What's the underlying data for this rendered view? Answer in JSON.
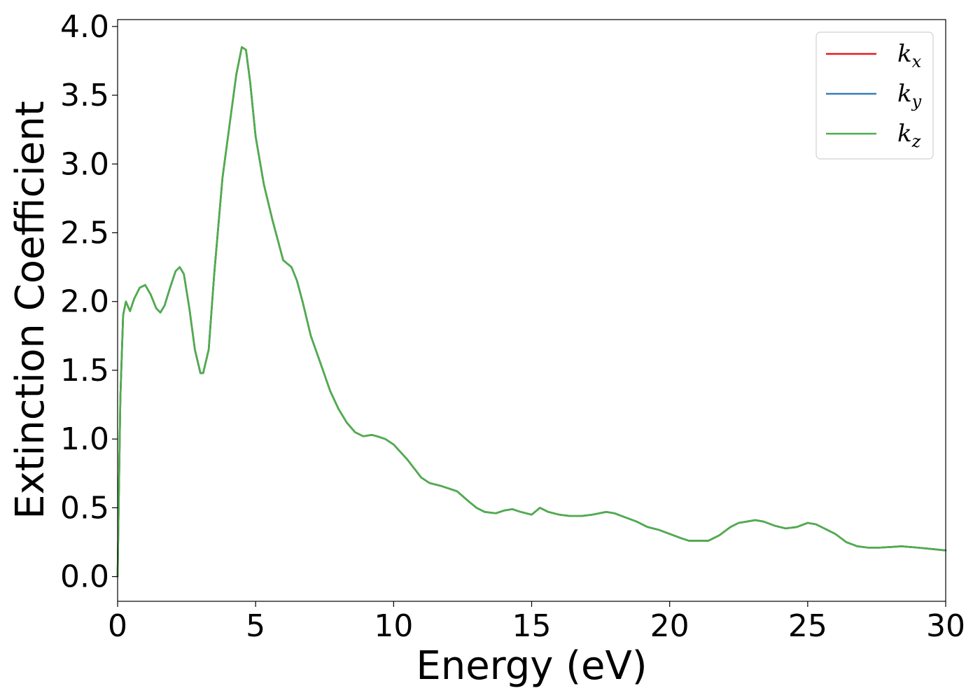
{
  "chart_data": {
    "type": "line",
    "title": "",
    "xlabel": "Energy (eV)",
    "ylabel": "Extinction Coefficient",
    "xlim": [
      0,
      30
    ],
    "ylim": [
      -0.18,
      4.05
    ],
    "xticks": [
      0,
      5,
      10,
      15,
      20,
      25,
      30
    ],
    "xtick_labels": [
      "0",
      "5",
      "10",
      "15",
      "20",
      "25",
      "30"
    ],
    "yticks": [
      0.0,
      0.5,
      1.0,
      1.5,
      2.0,
      2.5,
      3.0,
      3.5,
      4.0
    ],
    "ytick_labels": [
      "0.0",
      "0.5",
      "1.0",
      "1.5",
      "2.0",
      "2.5",
      "3.0",
      "3.5",
      "4.0"
    ],
    "grid": false,
    "legend_position": "top-right",
    "series": [
      {
        "name": "k_x",
        "label_base": "k",
        "label_sub": "x",
        "color": "#e41a1c",
        "x": [
          0,
          0.1,
          0.2,
          0.3,
          0.45,
          0.6,
          0.8,
          1.0,
          1.2,
          1.4,
          1.55,
          1.7,
          1.9,
          2.1,
          2.25,
          2.4,
          2.6,
          2.8,
          3.0,
          3.1,
          3.3,
          3.5,
          3.8,
          4.0,
          4.3,
          4.5,
          4.65,
          4.8,
          5.0,
          5.3,
          5.6,
          6.0,
          6.3,
          6.5,
          6.7,
          7.0,
          7.3,
          7.7,
          8.0,
          8.3,
          8.6,
          8.9,
          9.2,
          9.4,
          9.7,
          10.0,
          10.5,
          11.0,
          11.3,
          11.7,
          12.0,
          12.3,
          12.7,
          13.0,
          13.3,
          13.7,
          14.0,
          14.3,
          14.6,
          15.0,
          15.3,
          15.6,
          16.0,
          16.4,
          16.8,
          17.2,
          17.7,
          18.0,
          18.4,
          18.8,
          19.2,
          19.6,
          20.0,
          20.4,
          20.7,
          21.0,
          21.4,
          21.8,
          22.2,
          22.5,
          22.8,
          23.1,
          23.4,
          23.8,
          24.2,
          24.6,
          25.0,
          25.3,
          25.7,
          26.0,
          26.4,
          26.8,
          27.2,
          27.6,
          28.0,
          28.4,
          29.0,
          29.5,
          30.0
        ],
        "y": [
          0.0,
          1.3,
          1.9,
          2.0,
          1.93,
          2.02,
          2.1,
          2.12,
          2.05,
          1.95,
          1.92,
          1.97,
          2.1,
          2.22,
          2.25,
          2.2,
          1.95,
          1.65,
          1.48,
          1.48,
          1.65,
          2.2,
          2.9,
          3.2,
          3.65,
          3.85,
          3.83,
          3.6,
          3.2,
          2.85,
          2.6,
          2.3,
          2.25,
          2.15,
          2.0,
          1.75,
          1.58,
          1.35,
          1.22,
          1.12,
          1.05,
          1.02,
          1.03,
          1.02,
          1.0,
          0.96,
          0.85,
          0.72,
          0.68,
          0.66,
          0.64,
          0.62,
          0.55,
          0.5,
          0.47,
          0.46,
          0.48,
          0.49,
          0.47,
          0.45,
          0.5,
          0.47,
          0.45,
          0.44,
          0.44,
          0.45,
          0.47,
          0.46,
          0.43,
          0.4,
          0.36,
          0.34,
          0.31,
          0.28,
          0.26,
          0.26,
          0.26,
          0.3,
          0.36,
          0.39,
          0.4,
          0.41,
          0.4,
          0.37,
          0.35,
          0.36,
          0.39,
          0.38,
          0.34,
          0.31,
          0.25,
          0.22,
          0.21,
          0.21,
          0.215,
          0.22,
          0.21,
          0.2,
          0.19
        ]
      },
      {
        "name": "k_y",
        "label_base": "k",
        "label_sub": "y",
        "color": "#377eb8",
        "x": [
          0,
          0.1,
          0.2,
          0.3,
          0.45,
          0.6,
          0.8,
          1.0,
          1.2,
          1.4,
          1.55,
          1.7,
          1.9,
          2.1,
          2.25,
          2.4,
          2.6,
          2.8,
          3.0,
          3.1,
          3.3,
          3.5,
          3.8,
          4.0,
          4.3,
          4.5,
          4.65,
          4.8,
          5.0,
          5.3,
          5.6,
          6.0,
          6.3,
          6.5,
          6.7,
          7.0,
          7.3,
          7.7,
          8.0,
          8.3,
          8.6,
          8.9,
          9.2,
          9.4,
          9.7,
          10.0,
          10.5,
          11.0,
          11.3,
          11.7,
          12.0,
          12.3,
          12.7,
          13.0,
          13.3,
          13.7,
          14.0,
          14.3,
          14.6,
          15.0,
          15.3,
          15.6,
          16.0,
          16.4,
          16.8,
          17.2,
          17.7,
          18.0,
          18.4,
          18.8,
          19.2,
          19.6,
          20.0,
          20.4,
          20.7,
          21.0,
          21.4,
          21.8,
          22.2,
          22.5,
          22.8,
          23.1,
          23.4,
          23.8,
          24.2,
          24.6,
          25.0,
          25.3,
          25.7,
          26.0,
          26.4,
          26.8,
          27.2,
          27.6,
          28.0,
          28.4,
          29.0,
          29.5,
          30.0
        ],
        "y": [
          0.0,
          1.3,
          1.9,
          2.0,
          1.93,
          2.02,
          2.1,
          2.12,
          2.05,
          1.95,
          1.92,
          1.97,
          2.1,
          2.22,
          2.25,
          2.2,
          1.95,
          1.65,
          1.48,
          1.48,
          1.65,
          2.2,
          2.9,
          3.2,
          3.65,
          3.85,
          3.83,
          3.6,
          3.2,
          2.85,
          2.6,
          2.3,
          2.25,
          2.15,
          2.0,
          1.75,
          1.58,
          1.35,
          1.22,
          1.12,
          1.05,
          1.02,
          1.03,
          1.02,
          1.0,
          0.96,
          0.85,
          0.72,
          0.68,
          0.66,
          0.64,
          0.62,
          0.55,
          0.5,
          0.47,
          0.46,
          0.48,
          0.49,
          0.47,
          0.45,
          0.5,
          0.47,
          0.45,
          0.44,
          0.44,
          0.45,
          0.47,
          0.46,
          0.43,
          0.4,
          0.36,
          0.34,
          0.31,
          0.28,
          0.26,
          0.26,
          0.26,
          0.3,
          0.36,
          0.39,
          0.4,
          0.41,
          0.4,
          0.37,
          0.35,
          0.36,
          0.39,
          0.38,
          0.34,
          0.31,
          0.25,
          0.22,
          0.21,
          0.21,
          0.215,
          0.22,
          0.21,
          0.2,
          0.19
        ]
      },
      {
        "name": "k_z",
        "label_base": "k",
        "label_sub": "z",
        "color": "#4daf4a",
        "x": [
          0,
          0.1,
          0.2,
          0.3,
          0.45,
          0.6,
          0.8,
          1.0,
          1.2,
          1.4,
          1.55,
          1.7,
          1.9,
          2.1,
          2.25,
          2.4,
          2.6,
          2.8,
          3.0,
          3.1,
          3.3,
          3.5,
          3.8,
          4.0,
          4.3,
          4.5,
          4.65,
          4.8,
          5.0,
          5.3,
          5.6,
          6.0,
          6.3,
          6.5,
          6.7,
          7.0,
          7.3,
          7.7,
          8.0,
          8.3,
          8.6,
          8.9,
          9.2,
          9.4,
          9.7,
          10.0,
          10.5,
          11.0,
          11.3,
          11.7,
          12.0,
          12.3,
          12.7,
          13.0,
          13.3,
          13.7,
          14.0,
          14.3,
          14.6,
          15.0,
          15.3,
          15.6,
          16.0,
          16.4,
          16.8,
          17.2,
          17.7,
          18.0,
          18.4,
          18.8,
          19.2,
          19.6,
          20.0,
          20.4,
          20.7,
          21.0,
          21.4,
          21.8,
          22.2,
          22.5,
          22.8,
          23.1,
          23.4,
          23.8,
          24.2,
          24.6,
          25.0,
          25.3,
          25.7,
          26.0,
          26.4,
          26.8,
          27.2,
          27.6,
          28.0,
          28.4,
          29.0,
          29.5,
          30.0
        ],
        "y": [
          0.0,
          1.3,
          1.9,
          2.0,
          1.93,
          2.02,
          2.1,
          2.12,
          2.05,
          1.95,
          1.92,
          1.97,
          2.1,
          2.22,
          2.25,
          2.2,
          1.95,
          1.65,
          1.48,
          1.48,
          1.65,
          2.2,
          2.9,
          3.2,
          3.65,
          3.85,
          3.83,
          3.6,
          3.2,
          2.85,
          2.6,
          2.3,
          2.25,
          2.15,
          2.0,
          1.75,
          1.58,
          1.35,
          1.22,
          1.12,
          1.05,
          1.02,
          1.03,
          1.02,
          1.0,
          0.96,
          0.85,
          0.72,
          0.68,
          0.66,
          0.64,
          0.62,
          0.55,
          0.5,
          0.47,
          0.46,
          0.48,
          0.49,
          0.47,
          0.45,
          0.5,
          0.47,
          0.45,
          0.44,
          0.44,
          0.45,
          0.47,
          0.46,
          0.43,
          0.4,
          0.36,
          0.34,
          0.31,
          0.28,
          0.26,
          0.26,
          0.26,
          0.3,
          0.36,
          0.39,
          0.4,
          0.41,
          0.4,
          0.37,
          0.35,
          0.36,
          0.39,
          0.38,
          0.34,
          0.31,
          0.25,
          0.22,
          0.21,
          0.21,
          0.215,
          0.22,
          0.21,
          0.2,
          0.19
        ]
      }
    ]
  }
}
